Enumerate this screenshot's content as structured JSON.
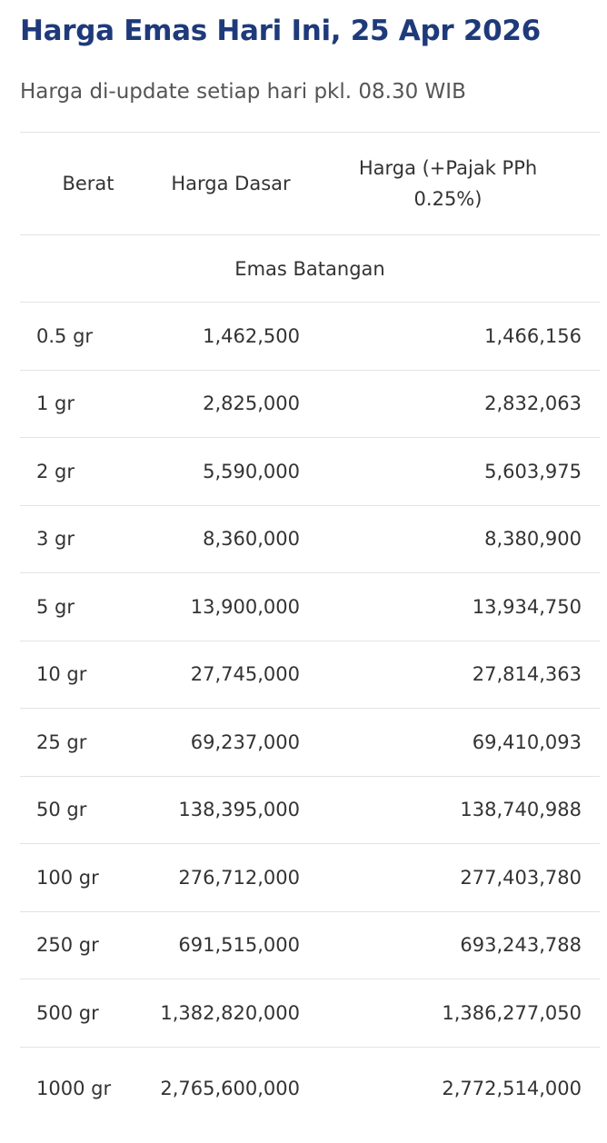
{
  "header": {
    "title": "Harga Emas Hari Ini, 25 Apr 2026",
    "subtitle": "Harga di-update setiap hari pkl. 08.30 WIB"
  },
  "table": {
    "columns": {
      "berat": "Berat",
      "dasar": "Harga Dasar",
      "pajak": "Harga (+Pajak PPh 0.25%)"
    },
    "section_label": "Emas Batangan",
    "rows": [
      {
        "berat": "0.5 gr",
        "dasar": "1,462,500",
        "pajak": "1,466,156"
      },
      {
        "berat": "1 gr",
        "dasar": "2,825,000",
        "pajak": "2,832,063"
      },
      {
        "berat": "2 gr",
        "dasar": "5,590,000",
        "pajak": "5,603,975"
      },
      {
        "berat": "3 gr",
        "dasar": "8,360,000",
        "pajak": "8,380,900"
      },
      {
        "berat": "5 gr",
        "dasar": "13,900,000",
        "pajak": "13,934,750"
      },
      {
        "berat": "10 gr",
        "dasar": "27,745,000",
        "pajak": "27,814,363"
      },
      {
        "berat": "25 gr",
        "dasar": "69,237,000",
        "pajak": "69,410,093"
      },
      {
        "berat": "50 gr",
        "dasar": "138,395,000",
        "pajak": "138,740,988"
      },
      {
        "berat": "100 gr",
        "dasar": "276,712,000",
        "pajak": "277,403,780"
      },
      {
        "berat": "250 gr",
        "dasar": "691,515,000",
        "pajak": "693,243,788"
      },
      {
        "berat": "500 gr",
        "dasar": "1,382,820,000",
        "pajak": "1,386,277,050"
      },
      {
        "berat": "1000 gr",
        "dasar": "2,765,600,000",
        "pajak": "2,772,514,000"
      }
    ]
  },
  "colors": {
    "title": "#1f3a7a",
    "text": "#333333",
    "divider": "#e3e3e3"
  }
}
